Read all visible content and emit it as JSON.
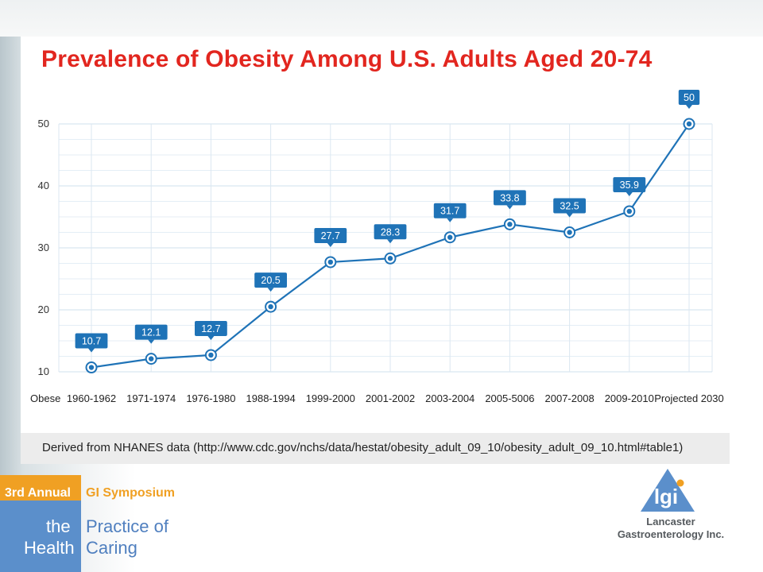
{
  "chart_data": {
    "type": "line",
    "title": "Prevalence of Obesity Among U.S. Adults Aged 20-74",
    "x_axis_series_label": "Obese",
    "categories": [
      "1960-1962",
      "1971-1974",
      "1976-1980",
      "1988-1994",
      "1999-2000",
      "2001-2002",
      "2003-2004",
      "2005-5006",
      "2007-2008",
      "2009-2010",
      "Projected 2030"
    ],
    "values": [
      10.7,
      12.1,
      12.7,
      20.5,
      27.7,
      28.3,
      31.7,
      33.8,
      32.5,
      35.9,
      50
    ],
    "data_labels": [
      "10.7",
      "12.1",
      "12.7",
      "20.5",
      "27.7",
      "28.3",
      "31.7",
      "33.8",
      "32.5",
      "35.9",
      "50"
    ],
    "y_ticks": [
      "10",
      "20",
      "30",
      "40",
      "50"
    ],
    "ylim": [
      10,
      50
    ],
    "grid": true,
    "line_color": "#1f73b7",
    "label_color": "#1f73b7"
  },
  "source": {
    "text": "Derived from NHANES data (http://www.cdc.gov/nchs/data/hestat/obesity_adult_09_10/obesity_adult_09_10.html#table1)"
  },
  "branding": {
    "annual": "3rd Annual",
    "symposium": "GI Symposium",
    "the": "the",
    "health": "Health",
    "practice_of": "Practice of",
    "caring": "Caring",
    "logo_mark": "lgi",
    "logo_name_line1": "Lancaster",
    "logo_name_line2": "Gastroenterology Inc.",
    "orange": "#f0a023",
    "blue": "#5b8fcb"
  }
}
